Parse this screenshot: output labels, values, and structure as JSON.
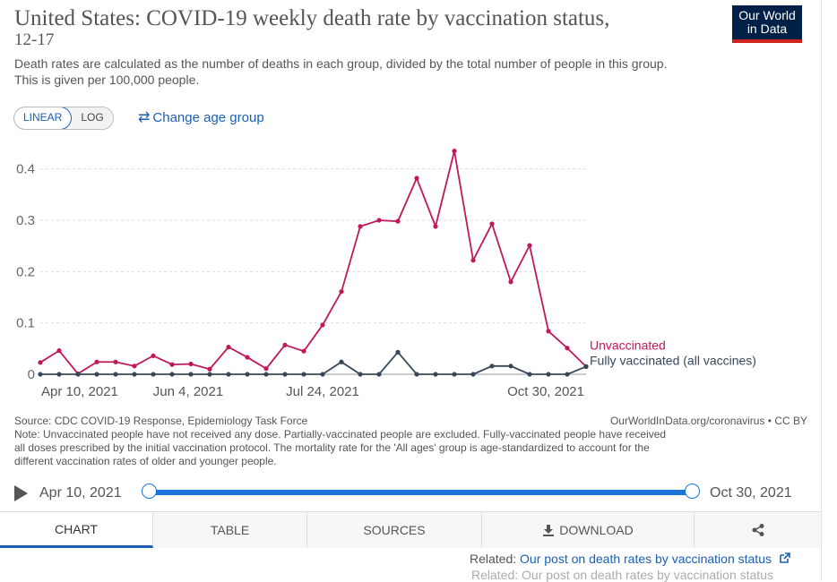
{
  "header": {
    "title_line1": "United States: COVID-19 weekly death rate by vaccination status,",
    "title_line2": "12-17",
    "subtitle_line1": "Death rates are calculated as the number of deaths in each group, divided by the total number of people in this group.",
    "subtitle_line2": "This is given per 100,000 people.",
    "logo_line1": "Our World",
    "logo_line2": "in Data"
  },
  "controls": {
    "linear_label": "LINEAR",
    "log_label": "LOG",
    "change_age_label": "Change age group",
    "change_age_icon": "swap-arrows-icon"
  },
  "chart_data": {
    "type": "line",
    "title": "United States: COVID-19 weekly death rate by vaccination status, 12-17",
    "ylabel": "",
    "xlabel": "",
    "ylim": [
      0,
      0.45
    ],
    "yticks": [
      "0",
      "0.1",
      "0.2",
      "0.3",
      "0.4"
    ],
    "x_tick_labels": [
      "Apr 10, 2021",
      "Jun 4, 2021",
      "Jul 24, 2021",
      "Oct 30, 2021"
    ],
    "x": [
      "2021-04-10",
      "2021-04-17",
      "2021-04-24",
      "2021-05-01",
      "2021-05-08",
      "2021-05-15",
      "2021-05-22",
      "2021-05-29",
      "2021-06-05",
      "2021-06-12",
      "2021-06-19",
      "2021-06-26",
      "2021-07-03",
      "2021-07-10",
      "2021-07-17",
      "2021-07-24",
      "2021-07-31",
      "2021-08-07",
      "2021-08-14",
      "2021-08-21",
      "2021-08-28",
      "2021-09-04",
      "2021-09-11",
      "2021-09-18",
      "2021-09-25",
      "2021-10-02",
      "2021-10-09",
      "2021-10-16",
      "2021-10-23",
      "2021-10-30"
    ],
    "grid": true,
    "legend_position": "right",
    "series": [
      {
        "name": "Unvaccinated",
        "color": "#c2185b",
        "values": [
          0.023,
          0.046,
          0.001,
          0.024,
          0.024,
          0.016,
          0.036,
          0.019,
          0.02,
          0.01,
          0.053,
          0.033,
          0.011,
          0.057,
          0.045,
          0.096,
          0.161,
          0.288,
          0.3,
          0.298,
          0.382,
          0.288,
          0.435,
          0.222,
          0.293,
          0.18,
          0.251,
          0.084,
          0.051,
          0.015
        ]
      },
      {
        "name": "Fully vaccinated (all vaccines)",
        "color": "#37475a",
        "values": [
          0,
          0,
          0,
          0,
          0,
          0,
          0,
          0,
          0,
          0,
          0,
          0,
          0,
          0,
          0,
          0,
          0.024,
          0,
          0,
          0.043,
          0,
          0,
          0,
          0,
          0.016,
          0.016,
          0,
          0,
          0,
          0.015
        ]
      }
    ]
  },
  "footer": {
    "source": "Source: CDC COVID-19 Response, Epidemiology Task Force",
    "site": "OurWorldInData.org/coronavirus • CC BY",
    "note_line1": "Note: Unvaccinated people have not received any dose. Partially-vaccinated people are excluded. Fully-vaccinated people have received",
    "note_line2": "all doses prescribed by the initial vaccination protocol. The mortality rate for the 'All ages' group is age-standardized to account for the",
    "note_line3": "different vaccination rates of older and younger people."
  },
  "timeline": {
    "start": "Apr 10, 2021",
    "end": "Oct 30, 2021"
  },
  "tabs": {
    "chart": "CHART",
    "table": "TABLE",
    "sources": "SOURCES",
    "download": "DOWNLOAD"
  },
  "related": {
    "prefix": "Related: ",
    "link": "Our post on death rates by vaccination status"
  }
}
